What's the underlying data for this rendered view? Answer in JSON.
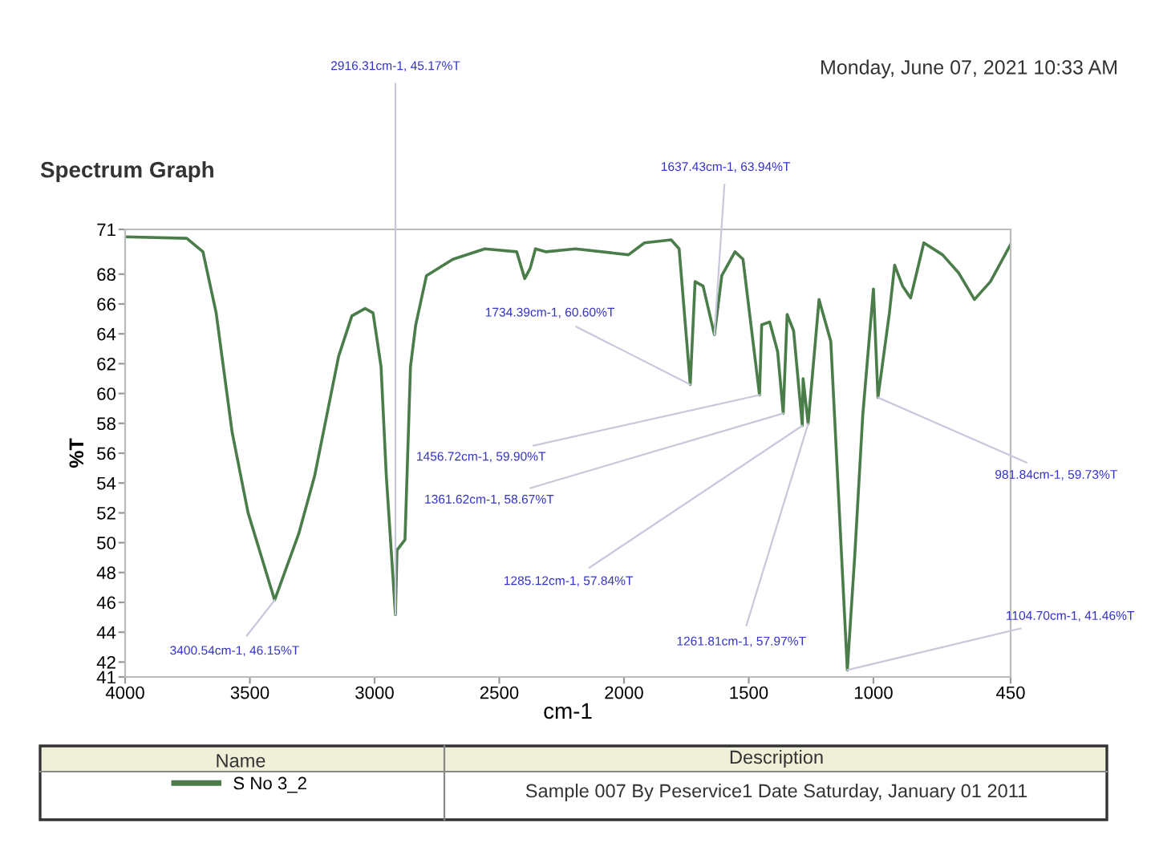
{
  "chart_data": {
    "type": "line",
    "title": "Spectrum Graph",
    "xlabel": "cm-1",
    "ylabel": "%T",
    "xlim": [
      4000,
      450
    ],
    "xticks": [
      4000,
      3500,
      3000,
      2500,
      2000,
      1500,
      1000,
      450
    ],
    "ylim": [
      41,
      71
    ],
    "yticks": [
      41,
      42,
      44,
      46,
      48,
      50,
      52,
      54,
      56,
      58,
      60,
      62,
      64,
      66,
      68,
      71
    ],
    "grid": false,
    "legend": "bottom",
    "legend_title": "Name",
    "series": [
      {
        "name": "S No 3_2",
        "color": "#4a7d4a",
        "x": [
          4000,
          3753,
          3688,
          3635,
          3571,
          3507,
          3400.54,
          3304,
          3240,
          3144,
          3091,
          3038,
          3006,
          2974,
          2953,
          2916.31,
          2910,
          2878,
          2856,
          2835,
          2792,
          2686,
          2558,
          2430,
          2398,
          2376,
          2355,
          2312,
          2195,
          1982,
          1918,
          1811,
          1779,
          1734.39,
          1715,
          1683,
          1637.43,
          1608,
          1555,
          1523,
          1456.72,
          1448,
          1416,
          1384,
          1361.62,
          1346,
          1320,
          1285.12,
          1282,
          1261.81,
          1218,
          1171,
          1104.7,
          1075,
          1043,
          1000,
          981.84,
          936,
          915,
          883,
          851,
          798,
          723,
          659,
          595,
          531,
          450
        ],
        "values": [
          70.5,
          70.4,
          69.5,
          65.4,
          57.4,
          52.0,
          46.15,
          50.6,
          54.5,
          62.5,
          65.2,
          65.7,
          65.4,
          61.8,
          54.5,
          45.17,
          49.5,
          50.2,
          61.8,
          64.6,
          67.9,
          69.0,
          69.7,
          69.5,
          67.7,
          68.4,
          69.7,
          69.5,
          69.7,
          69.3,
          70.1,
          70.3,
          69.7,
          60.6,
          67.5,
          67.2,
          63.94,
          67.9,
          69.5,
          69.0,
          59.9,
          64.6,
          64.8,
          62.8,
          58.67,
          65.3,
          64.2,
          57.84,
          61.0,
          57.97,
          66.3,
          63.5,
          41.46,
          49.1,
          58.5,
          67.0,
          59.73,
          65.4,
          68.6,
          67.2,
          66.4,
          70.1,
          69.3,
          68.1,
          66.3,
          67.5,
          70.0
        ]
      }
    ],
    "annotations": [
      {
        "text": "3400.54cm-1, 46.15%T",
        "x": 3400.54,
        "y": 46.15
      },
      {
        "text": "2916.31cm-1, 45.17%T",
        "x": 2916.31,
        "y": 45.17
      },
      {
        "text": "1637.43cm-1, 63.94%T",
        "x": 1637.43,
        "y": 63.94
      },
      {
        "text": "1734.39cm-1, 60.60%T",
        "x": 1734.39,
        "y": 60.6
      },
      {
        "text": "1456.72cm-1, 59.90%T",
        "x": 1456.72,
        "y": 59.9
      },
      {
        "text": "1361.62cm-1, 58.67%T",
        "x": 1361.62,
        "y": 58.67
      },
      {
        "text": "1285.12cm-1, 57.84%T",
        "x": 1285.12,
        "y": 57.84
      },
      {
        "text": "1261.81cm-1, 57.97%T",
        "x": 1261.81,
        "y": 57.97
      },
      {
        "text": "1104.70cm-1, 41.46%T",
        "x": 1104.7,
        "y": 41.46
      },
      {
        "text": "981.84cm-1, 59.73%T",
        "x": 981.84,
        "y": 59.73
      },
      "Monday, June 07, 2021 10:33 AM",
      "Description",
      "Sample 007 By Peservice1 Date Saturday, January 01 2011"
    ]
  }
}
